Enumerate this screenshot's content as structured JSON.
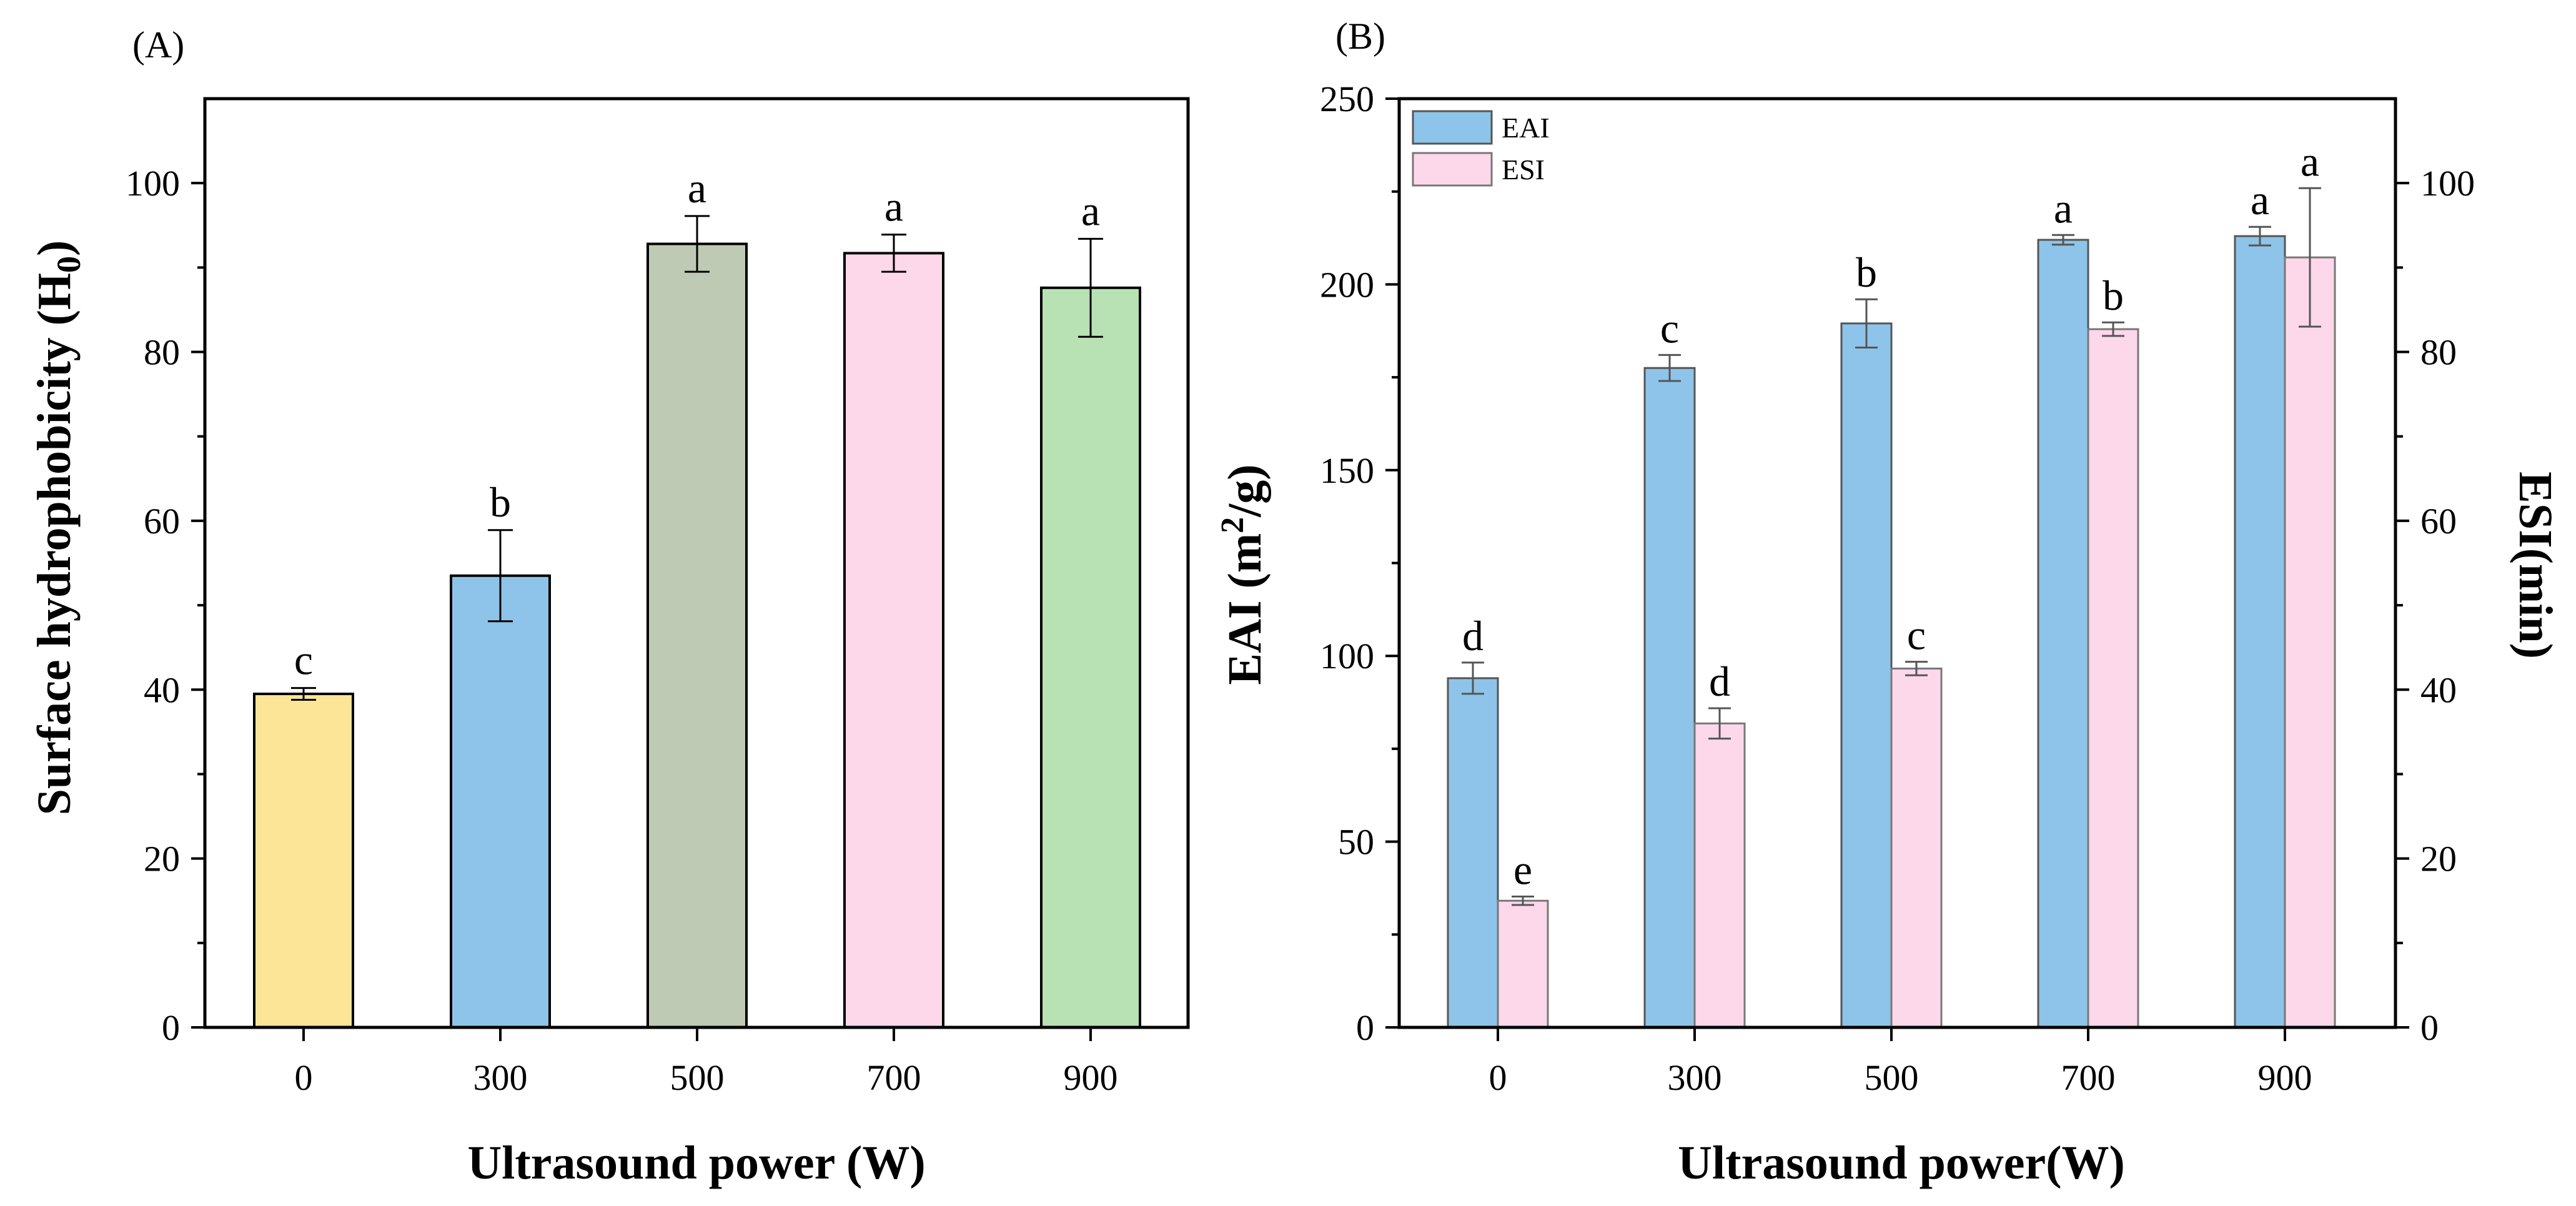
{
  "chart_data": [
    {
      "panel_label": "(A)",
      "type": "bar",
      "categories": [
        "0",
        "300",
        "500",
        "700",
        "900"
      ],
      "values": [
        39.5,
        53.5,
        92.8,
        91.7,
        87.6
      ],
      "errors": [
        0.7,
        5.4,
        3.3,
        2.2,
        5.8
      ],
      "significance": [
        "c",
        "b",
        "a",
        "a",
        "a"
      ],
      "bar_colors": [
        "#FDE597",
        "#8EC4E9",
        "#BFCAB4",
        "#FDD8EB",
        "#B8E2B4"
      ],
      "xlabel": "Ultrasound power (W)",
      "ylabel": "Surface hydrophobicity (H",
      "ylabel_subscript": "0",
      "ylabel_suffix": ")",
      "ylim": [
        0,
        110
      ],
      "yticks": [
        "0",
        "20",
        "40",
        "60",
        "80",
        "100"
      ]
    },
    {
      "panel_label": "(B)",
      "type": "bar",
      "categories": [
        "0",
        "300",
        "500",
        "700",
        "900"
      ],
      "series": [
        {
          "name": "EAI",
          "axis": "left",
          "color": "#8EC4E9",
          "values": [
            94,
            177.5,
            189.5,
            212,
            213
          ],
          "errors": [
            4.2,
            3.5,
            6.5,
            1.3,
            2.5
          ],
          "significance": [
            "d",
            "c",
            "b",
            "a",
            "a"
          ]
        },
        {
          "name": "ESI",
          "axis": "right",
          "color": "#FDD8EB",
          "values": [
            15,
            36,
            42.5,
            82.7,
            91.2
          ],
          "errors": [
            0.5,
            1.8,
            0.8,
            0.8,
            8.2
          ],
          "significance": [
            "e",
            "d",
            "c",
            "b",
            "a"
          ]
        }
      ],
      "xlabel": "Ultrasound power(W)",
      "ylabel_left": "EAI (m",
      "ylabel_left_superscript": "2",
      "ylabel_left_suffix": "/g)",
      "ylabel_right": "ESI(min)",
      "ylim_left": [
        0,
        250
      ],
      "ylim_right": [
        0,
        110
      ],
      "yticks_left": [
        "0",
        "50",
        "100",
        "150",
        "200",
        "250"
      ],
      "yticks_right": [
        "0",
        "20",
        "40",
        "60",
        "80",
        "100"
      ],
      "legend_position": "top-left"
    }
  ]
}
